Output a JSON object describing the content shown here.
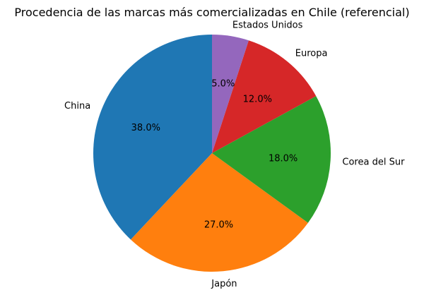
{
  "chart_data": {
    "type": "pie",
    "title": "Procedencia de las marcas más comercializadas en Chile (referencial)",
    "start_angle_deg": 90,
    "direction": "counterclockwise",
    "slices": [
      {
        "label": "China",
        "value": 38.0,
        "pct_label": "38.0%",
        "color": "#1f77b4"
      },
      {
        "label": "Japón",
        "value": 27.0,
        "pct_label": "27.0%",
        "color": "#ff7f0e"
      },
      {
        "label": "Corea del Sur",
        "value": 18.0,
        "pct_label": "18.0%",
        "color": "#2ca02c"
      },
      {
        "label": "Europa",
        "value": 12.0,
        "pct_label": "12.0%",
        "color": "#d62728"
      },
      {
        "label": "Estados Unidos",
        "value": 5.0,
        "pct_label": "5.0%",
        "color": "#9467bd"
      }
    ]
  }
}
